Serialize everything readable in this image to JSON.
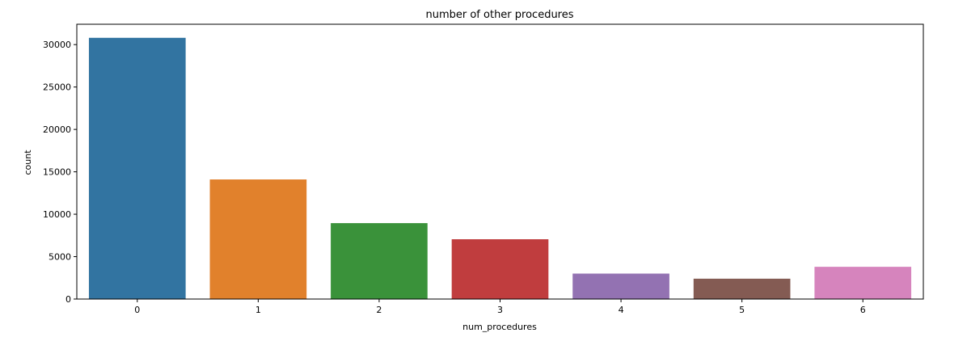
{
  "chart_data": {
    "type": "bar",
    "title": "number of other procedures",
    "xlabel": "num_procedures",
    "ylabel": "count",
    "categories": [
      "0",
      "1",
      "2",
      "3",
      "4",
      "5",
      "6"
    ],
    "values": [
      30800,
      14100,
      8950,
      7050,
      3000,
      2400,
      3800
    ],
    "colors": [
      "#3274a1",
      "#e1812c",
      "#3a923a",
      "#c03d3e",
      "#9372b2",
      "#845b53",
      "#d684bd"
    ],
    "ylim": [
      0,
      32400
    ],
    "yticks": [
      0,
      5000,
      10000,
      15000,
      20000,
      25000,
      30000
    ],
    "grid": false,
    "legend": "none"
  }
}
